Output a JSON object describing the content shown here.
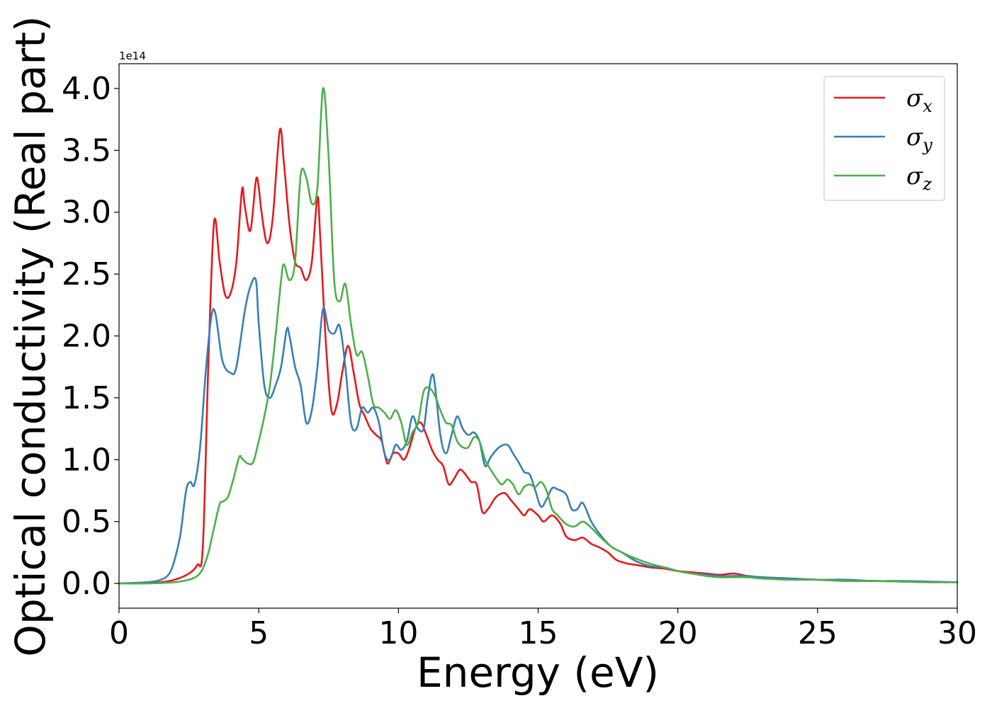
{
  "chart_data": {
    "type": "line",
    "title": "",
    "xlabel": "Energy (eV)",
    "ylabel": "Optical conductivity (Real part)",
    "y_offset_label": "1e14",
    "xlim": [
      0,
      30
    ],
    "ylim": [
      -0.2,
      4.2
    ],
    "xticks": [
      0,
      5,
      10,
      15,
      20,
      25,
      30
    ],
    "yticks": [
      0.0,
      0.5,
      1.0,
      1.5,
      2.0,
      2.5,
      3.0,
      3.5,
      4.0
    ],
    "xtick_labels": [
      "0",
      "5",
      "10",
      "15",
      "20",
      "25",
      "30"
    ],
    "ytick_labels": [
      "0.0",
      "0.5",
      "1.0",
      "1.5",
      "2.0",
      "2.5",
      "3.0",
      "3.5",
      "4.0"
    ],
    "grid": false,
    "legend_position": "top-right",
    "series": [
      {
        "name": "σx",
        "legend_base": "σ",
        "legend_sub": "x",
        "color": "#e41a1c",
        "x": [
          0,
          1,
          1.5,
          2,
          2.5,
          2.8,
          3.0,
          3.2,
          3.4,
          3.6,
          3.8,
          4.0,
          4.2,
          4.4,
          4.5,
          4.7,
          4.9,
          5.0,
          5.1,
          5.3,
          5.5,
          5.75,
          5.9,
          6.1,
          6.3,
          6.5,
          6.7,
          6.9,
          7.1,
          7.2,
          7.4,
          7.6,
          7.8,
          8.0,
          8.2,
          8.4,
          8.6,
          8.8,
          9.0,
          9.2,
          9.4,
          9.6,
          9.8,
          10.0,
          10.2,
          10.4,
          10.6,
          10.8,
          11.0,
          11.2,
          11.4,
          11.6,
          11.8,
          12.0,
          12.2,
          12.4,
          12.6,
          12.8,
          13.0,
          13.2,
          13.5,
          13.8,
          14.0,
          14.3,
          14.5,
          14.7,
          15.0,
          15.2,
          15.5,
          15.8,
          16.0,
          16.3,
          16.6,
          16.9,
          17.2,
          17.5,
          17.8,
          18.2,
          18.5,
          19.0,
          19.5,
          20.0,
          20.5,
          21.0,
          21.5,
          22.0,
          22.5,
          23.0,
          24.0,
          25.0,
          26.0,
          27.0,
          28.0,
          29.0,
          30.0
        ],
        "y": [
          0.0,
          0.005,
          0.01,
          0.03,
          0.08,
          0.15,
          0.3,
          1.8,
          2.92,
          2.6,
          2.33,
          2.35,
          2.6,
          3.18,
          3.05,
          2.85,
          3.26,
          3.2,
          3.0,
          2.75,
          2.95,
          3.66,
          3.4,
          2.9,
          2.6,
          2.55,
          2.45,
          2.6,
          3.12,
          2.8,
          1.95,
          1.4,
          1.45,
          1.72,
          1.92,
          1.7,
          1.45,
          1.35,
          1.25,
          1.2,
          1.15,
          0.97,
          1.05,
          1.05,
          1.0,
          1.1,
          1.25,
          1.3,
          1.2,
          1.08,
          1.0,
          0.95,
          0.8,
          0.85,
          0.92,
          0.88,
          0.82,
          0.8,
          0.58,
          0.6,
          0.7,
          0.73,
          0.68,
          0.6,
          0.55,
          0.6,
          0.55,
          0.5,
          0.55,
          0.48,
          0.38,
          0.35,
          0.37,
          0.32,
          0.29,
          0.25,
          0.19,
          0.16,
          0.15,
          0.13,
          0.12,
          0.1,
          0.09,
          0.08,
          0.07,
          0.08,
          0.06,
          0.05,
          0.04,
          0.03,
          0.02,
          0.02,
          0.015,
          0.01,
          0.01
        ]
      },
      {
        "name": "σy",
        "legend_base": "σ",
        "legend_sub": "y",
        "color": "#377eb8",
        "x": [
          0,
          1,
          1.5,
          1.8,
          2.0,
          2.2,
          2.4,
          2.55,
          2.7,
          2.9,
          3.1,
          3.3,
          3.45,
          3.7,
          4.0,
          4.2,
          4.5,
          4.7,
          4.9,
          5.0,
          5.2,
          5.4,
          5.6,
          5.8,
          6.0,
          6.1,
          6.3,
          6.5,
          6.7,
          6.9,
          7.1,
          7.3,
          7.5,
          7.7,
          7.9,
          8.1,
          8.3,
          8.5,
          8.7,
          8.9,
          9.1,
          9.3,
          9.5,
          9.7,
          9.9,
          10.1,
          10.3,
          10.5,
          10.7,
          10.9,
          11.05,
          11.25,
          11.5,
          11.7,
          11.9,
          12.1,
          12.3,
          12.5,
          12.7,
          12.9,
          13.1,
          13.3,
          13.6,
          13.9,
          14.1,
          14.3,
          14.5,
          14.7,
          14.9,
          15.1,
          15.3,
          15.5,
          15.7,
          16.0,
          16.2,
          16.4,
          16.6,
          16.9,
          17.2,
          17.6,
          18.0,
          18.5,
          19.0,
          19.5,
          20.0,
          20.5,
          21.0,
          21.5,
          22.0,
          22.5,
          23.0,
          24.0,
          25.0,
          26.0,
          27.0,
          28.0,
          29.0,
          30.0
        ],
        "y": [
          0.0,
          0.01,
          0.03,
          0.08,
          0.2,
          0.4,
          0.75,
          0.82,
          0.8,
          1.1,
          1.7,
          2.15,
          2.18,
          1.8,
          1.7,
          1.75,
          2.2,
          2.4,
          2.45,
          2.1,
          1.6,
          1.5,
          1.6,
          1.75,
          2.05,
          2.0,
          1.75,
          1.6,
          1.3,
          1.4,
          1.75,
          2.22,
          2.05,
          2.02,
          2.08,
          1.75,
          1.3,
          1.25,
          1.42,
          1.38,
          1.42,
          1.3,
          1.05,
          1.0,
          1.12,
          1.08,
          1.15,
          1.35,
          1.25,
          1.25,
          1.5,
          1.68,
          1.2,
          1.05,
          1.2,
          1.35,
          1.25,
          1.2,
          1.22,
          1.15,
          0.95,
          1.02,
          1.1,
          1.12,
          1.05,
          0.98,
          0.9,
          0.88,
          0.75,
          0.62,
          0.68,
          0.77,
          0.76,
          0.72,
          0.6,
          0.6,
          0.65,
          0.5,
          0.4,
          0.3,
          0.25,
          0.18,
          0.14,
          0.13,
          0.1,
          0.08,
          0.07,
          0.06,
          0.06,
          0.06,
          0.05,
          0.04,
          0.03,
          0.03,
          0.02,
          0.02,
          0.015,
          0.01
        ]
      },
      {
        "name": "σz",
        "legend_base": "σ",
        "legend_sub": "z",
        "color": "#4daf4a",
        "x": [
          0,
          1,
          2,
          2.5,
          2.8,
          3.0,
          3.2,
          3.4,
          3.6,
          3.7,
          3.9,
          4.1,
          4.3,
          4.4,
          4.6,
          4.8,
          5.0,
          5.2,
          5.4,
          5.6,
          5.8,
          5.9,
          6.1,
          6.3,
          6.5,
          6.7,
          6.9,
          7.1,
          7.3,
          7.5,
          7.7,
          7.9,
          8.1,
          8.3,
          8.5,
          8.7,
          8.9,
          9.1,
          9.3,
          9.5,
          9.7,
          9.9,
          10.1,
          10.3,
          10.5,
          10.7,
          10.9,
          11.1,
          11.3,
          11.5,
          11.7,
          11.9,
          12.1,
          12.3,
          12.5,
          12.7,
          12.9,
          13.1,
          13.3,
          13.5,
          13.7,
          13.9,
          14.1,
          14.3,
          14.5,
          14.7,
          14.9,
          15.1,
          15.3,
          15.5,
          15.7,
          16.0,
          16.3,
          16.6,
          16.9,
          17.2,
          17.6,
          18.0,
          18.5,
          19.0,
          19.5,
          20.0,
          20.5,
          21.0,
          21.5,
          22.0,
          22.5,
          23.0,
          24.0,
          25.0,
          26.0,
          27.0,
          28.0,
          29.0,
          30.0
        ],
        "y": [
          0.0,
          0.0,
          0.01,
          0.03,
          0.06,
          0.12,
          0.25,
          0.45,
          0.64,
          0.66,
          0.7,
          0.85,
          1.02,
          1.01,
          0.97,
          0.98,
          1.15,
          1.35,
          1.6,
          2.0,
          2.45,
          2.58,
          2.45,
          2.6,
          3.3,
          3.28,
          3.07,
          3.2,
          4.0,
          3.45,
          2.45,
          2.28,
          2.42,
          2.1,
          1.85,
          1.87,
          1.68,
          1.45,
          1.42,
          1.38,
          1.33,
          1.4,
          1.3,
          1.12,
          1.22,
          1.3,
          1.55,
          1.58,
          1.52,
          1.4,
          1.3,
          1.28,
          1.15,
          1.1,
          1.1,
          1.18,
          1.15,
          1.0,
          0.92,
          0.85,
          0.8,
          0.84,
          0.8,
          0.72,
          0.78,
          0.8,
          0.78,
          0.82,
          0.75,
          0.6,
          0.55,
          0.48,
          0.46,
          0.5,
          0.45,
          0.38,
          0.3,
          0.25,
          0.2,
          0.16,
          0.13,
          0.1,
          0.08,
          0.06,
          0.05,
          0.05,
          0.05,
          0.04,
          0.03,
          0.03,
          0.02,
          0.02,
          0.015,
          0.01,
          0.01
        ]
      }
    ]
  }
}
